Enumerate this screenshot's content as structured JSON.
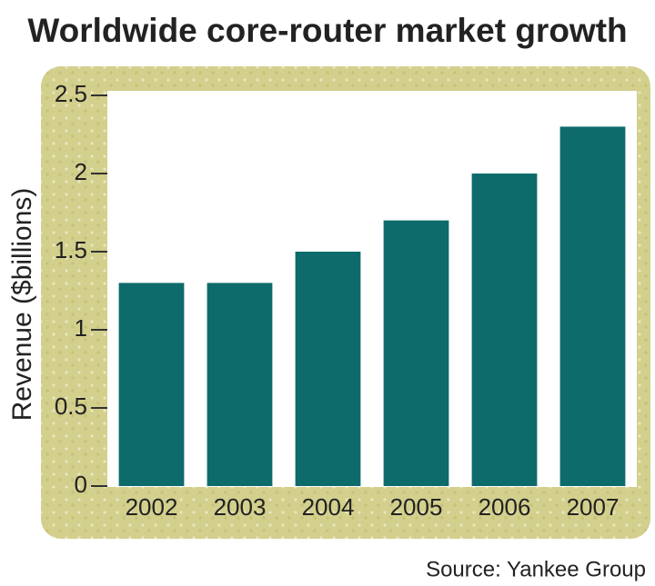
{
  "chart_data": {
    "type": "bar",
    "title": "Worldwide core-router market growth",
    "y_label": "Revenue ($billions)",
    "categories": [
      "2002",
      "2003",
      "2004",
      "2005",
      "2006",
      "2007"
    ],
    "values": [
      1.3,
      1.3,
      1.5,
      1.7,
      2.0,
      2.3
    ],
    "color": "#0e6b6b",
    "ylim": [
      0,
      2.5
    ],
    "yticks": [
      0,
      0.5,
      1,
      1.5,
      2,
      2.5
    ],
    "source": "Source: Yankee Group"
  }
}
